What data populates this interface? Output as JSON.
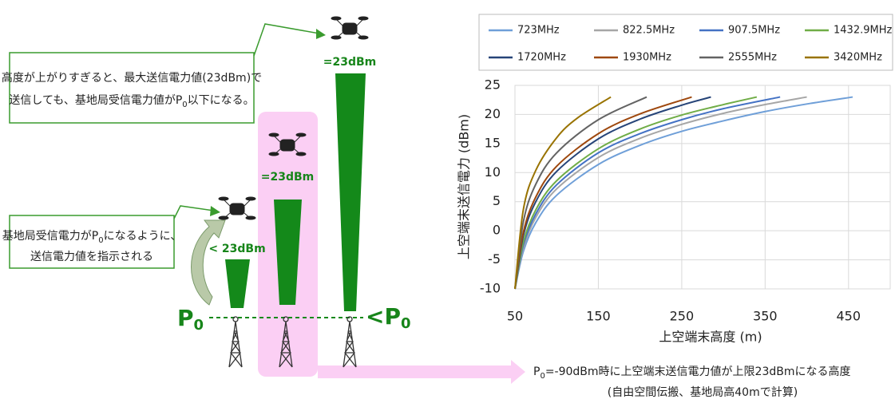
{
  "diagram": {
    "callouts": [
      {
        "line1": "高度が上がりすぎると、最大送信電力値(23dBm)で",
        "line2": [
          "送信しても、基地局受信電力値がP",
          "0",
          "以下になる。"
        ]
      },
      {
        "line1": [
          "基地局受信電力がP",
          "0",
          "になるように、"
        ],
        "line2": "送信電力値を指示される"
      }
    ],
    "power_labels": [
      "< 23dBm",
      "=23dBm",
      "=23dBm"
    ],
    "p0_left": [
      "P",
      "0"
    ],
    "p0_right": [
      "<P",
      "0"
    ],
    "note": {
      "line1": [
        "P",
        "0",
        "=-90dBm時に上空端末送信電力値が上限23dBmになる高度"
      ],
      "line2": "(自由空間伝搬、基地局高40mで計算)"
    }
  },
  "chart_data": {
    "type": "line",
    "x_label": "上空端末高度 (m)",
    "y_label": "上空端末送信電力 (dBm)",
    "xlim": [
      50,
      500
    ],
    "xticks": [
      50,
      150,
      250,
      350,
      450
    ],
    "ylim": [
      -10,
      25
    ],
    "yticks": [
      -10,
      -5,
      0,
      5,
      10,
      15,
      20,
      25
    ],
    "grid": true,
    "series": [
      {
        "name": "723MHz",
        "color": "#6f9fd8",
        "x": [
          50,
          60,
          75,
          100,
          150,
          200,
          250,
          300,
          350,
          400,
          455
        ],
        "values": [
          -10,
          -3.6,
          1.4,
          6.1,
          11.4,
          14.7,
          17.1,
          18.9,
          20.5,
          21.8,
          23
        ]
      },
      {
        "name": "822.5MHz",
        "color": "#a6a6a6",
        "x": [
          50,
          60,
          75,
          100,
          150,
          200,
          250,
          300,
          350,
          400
        ],
        "values": [
          -10,
          -3.0,
          2.3,
          7.2,
          12.6,
          15.9,
          18.3,
          20.2,
          21.7,
          23
        ]
      },
      {
        "name": "907.5MHz",
        "color": "#4472c4",
        "x": [
          50,
          60,
          75,
          100,
          150,
          200,
          250,
          300,
          368
        ],
        "values": [
          -10,
          -2.5,
          2.9,
          7.9,
          13.4,
          16.7,
          19.1,
          21.0,
          23
        ]
      },
      {
        "name": "1432.9MHz",
        "color": "#70ad47",
        "x": [
          50,
          60,
          75,
          100,
          150,
          200,
          250,
          300,
          340
        ],
        "values": [
          -10,
          -2.0,
          3.6,
          8.6,
          14.1,
          17.5,
          19.9,
          21.7,
          23
        ]
      },
      {
        "name": "1720MHz",
        "color": "#264478",
        "x": [
          50,
          60,
          75,
          100,
          150,
          200,
          250,
          285
        ],
        "values": [
          -10,
          -0.9,
          5.0,
          10.2,
          15.8,
          19.2,
          21.6,
          23
        ]
      },
      {
        "name": "1930MHz",
        "color": "#9e480e",
        "x": [
          50,
          60,
          75,
          100,
          150,
          200,
          262
        ],
        "values": [
          -10,
          -0.3,
          5.8,
          11.1,
          16.7,
          20.1,
          23
        ]
      },
      {
        "name": "2555MHz",
        "color": "#636363",
        "x": [
          50,
          60,
          75,
          100,
          150,
          208
        ],
        "values": [
          -10,
          1.5,
          8.0,
          13.4,
          19.1,
          23
        ]
      },
      {
        "name": "3420MHz",
        "color": "#997300",
        "x": [
          50,
          60,
          75,
          100,
          125,
          165
        ],
        "values": [
          -10,
          3.6,
          10.4,
          16.0,
          19.4,
          23
        ]
      }
    ]
  }
}
